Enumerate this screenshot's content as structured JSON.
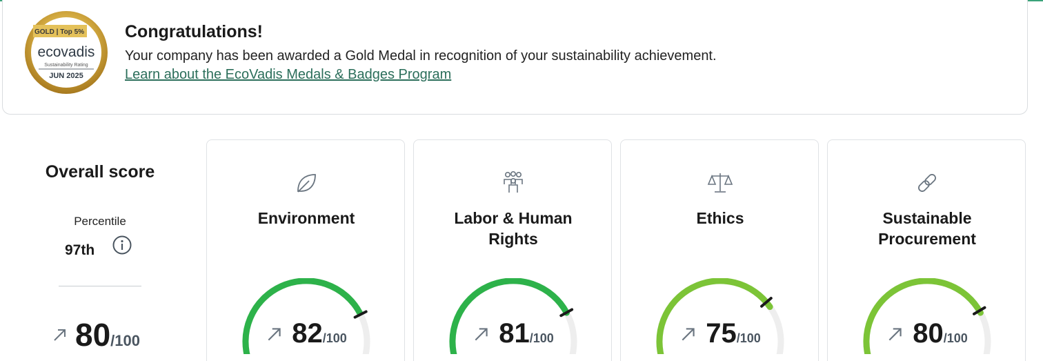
{
  "banner": {
    "title": "Congratulations!",
    "text": "Your company has been awarded a Gold Medal in recognition of your sustainability achievement.",
    "link": "Learn about the EcoVadis Medals & Badges Program",
    "medal": {
      "ribbon": "GOLD | Top 5%",
      "brand": "ecovadis",
      "subtitle": "Sustainability Rating",
      "date": "JUN 2025"
    }
  },
  "overall": {
    "title": "Overall score",
    "percentile_label": "Percentile",
    "percentile_value": "97th",
    "score": "80",
    "max": "/100",
    "trend_icon": "arrow-up-right-icon"
  },
  "themes": [
    {
      "key": "environment",
      "icon": "leaf-icon",
      "title_lines": [
        "Environment",
        ""
      ],
      "score": "82",
      "max": "/100",
      "score_fraction": 0.82,
      "gauge_color": "#2db24a"
    },
    {
      "key": "labor",
      "icon": "people-group-icon",
      "title_lines": [
        "Labor & Human",
        "Rights"
      ],
      "score": "81",
      "max": "/100",
      "score_fraction": 0.81,
      "gauge_color": "#2db24a"
    },
    {
      "key": "ethics",
      "icon": "scales-icon",
      "title_lines": [
        "Ethics",
        ""
      ],
      "score": "75",
      "max": "/100",
      "score_fraction": 0.75,
      "gauge_color": "#7cc437"
    },
    {
      "key": "procurement",
      "icon": "chain-link-icon",
      "title_lines": [
        "Sustainable",
        "Procurement"
      ],
      "score": "80",
      "max": "/100",
      "score_fraction": 0.8,
      "gauge_color": "#7cc437"
    }
  ],
  "colors": {
    "accent_line": "#3aa37a",
    "link": "#2b6e5a",
    "gauge_track": "#eeeeee",
    "gauge_dark_green": "#2db24a",
    "gauge_light_green": "#7cc437"
  }
}
